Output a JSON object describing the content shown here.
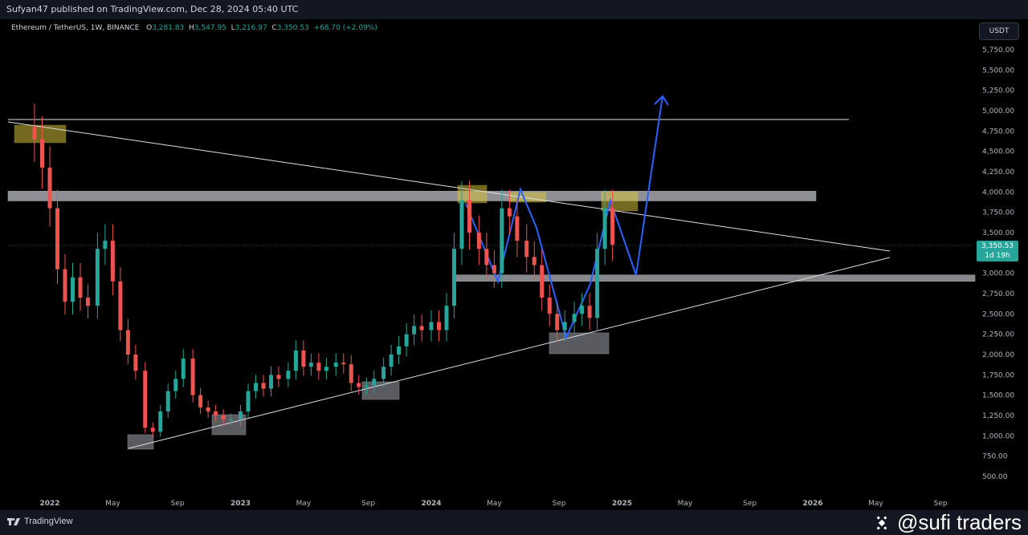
{
  "topbar": {
    "text": "Sufyan47 published on TradingView.com, Dec 28, 2024 05:40 UTC"
  },
  "legend": {
    "symbol": "Ethereum / TetherUS, 1W, BINANCE",
    "o_label": "O",
    "o": "3,281.83",
    "h_label": "H",
    "h": "3,547.95",
    "l_label": "L",
    "l": "3,216.97",
    "c_label": "C",
    "c": "3,350.53",
    "chg": "+68.70 (+2.09%)"
  },
  "currency_button": "USDT",
  "price_tag": {
    "price": "3,350.53",
    "countdown": "1d 19h"
  },
  "footer": {
    "brand": "TradingView",
    "watermark": "@sufi traders"
  },
  "colors": {
    "up": "#26a69a",
    "down": "#ef5350",
    "accent": "#2962ff",
    "zone_gray": "#9598a1",
    "zone_yellow": "#b8a62a"
  },
  "chart_data": {
    "type": "candlestick",
    "title": "Ethereum / TetherUS, 1W, BINANCE",
    "y_ticks": [
      "500.00",
      "750.00",
      "1,000.00",
      "1,250.00",
      "1,500.00",
      "1,750.00",
      "2,000.00",
      "2,250.00",
      "2,500.00",
      "2,750.00",
      "3,000.00",
      "3,250.00",
      "3,500.00",
      "3,750.00",
      "4,000.00",
      "4,250.00",
      "4,500.00",
      "4,750.00",
      "5,000.00",
      "5,250.00",
      "5,500.00",
      "5,750.00"
    ],
    "x_ticks": [
      "2022",
      "May",
      "Sep",
      "2023",
      "May",
      "Sep",
      "2024",
      "May",
      "Sep",
      "2025",
      "May",
      "Sep",
      "2026",
      "May",
      "Sep"
    ],
    "ylim": [
      400,
      5950
    ],
    "series": [
      {
        "name": "ETHUSDT",
        "t": [
          2021.92,
          2021.96,
          2022.0,
          2022.04,
          2022.08,
          2022.12,
          2022.16,
          2022.2,
          2022.25,
          2022.29,
          2022.33,
          2022.37,
          2022.41,
          2022.45,
          2022.5,
          2022.54,
          2022.58,
          2022.62,
          2022.66,
          2022.7,
          2022.75,
          2022.79,
          2022.83,
          2022.87,
          2022.91,
          2022.95,
          2023.0,
          2023.04,
          2023.08,
          2023.12,
          2023.16,
          2023.2,
          2023.25,
          2023.29,
          2023.33,
          2023.37,
          2023.41,
          2023.45,
          2023.5,
          2023.54,
          2023.58,
          2023.62,
          2023.66,
          2023.7,
          2023.75,
          2023.79,
          2023.83,
          2023.87,
          2023.91,
          2023.95,
          2024.0,
          2024.04,
          2024.08,
          2024.12,
          2024.16,
          2024.2,
          2024.25,
          2024.29,
          2024.33,
          2024.37,
          2024.41,
          2024.45,
          2024.5,
          2024.54,
          2024.58,
          2024.62,
          2024.66,
          2024.7,
          2024.75,
          2024.79,
          2024.83,
          2024.87,
          2024.91,
          2024.95
        ],
        "close": [
          4650,
          4300,
          3800,
          3050,
          2650,
          2950,
          2700,
          2600,
          3300,
          3400,
          2900,
          2300,
          2000,
          1800,
          1100,
          1050,
          1300,
          1550,
          1700,
          1950,
          1500,
          1350,
          1300,
          1250,
          1200,
          1200,
          1300,
          1550,
          1650,
          1580,
          1750,
          1700,
          1800,
          2050,
          1850,
          1900,
          1800,
          1850,
          1900,
          1880,
          1650,
          1600,
          1620,
          1700,
          1850,
          2000,
          2100,
          2250,
          2350,
          2300,
          2400,
          2300,
          2600,
          3300,
          3900,
          3500,
          3300,
          3100,
          3000,
          3800,
          3700,
          3400,
          3200,
          3100,
          2700,
          2500,
          2300,
          2400,
          2500,
          2600,
          2450,
          3300,
          3800,
          3350.53
        ]
      }
    ],
    "annotations": {
      "resistance_zone": [
        3890,
        4010
      ],
      "support_zone": [
        2900,
        2980
      ],
      "horizontal_line": 4880,
      "descending_trendline": {
        "from": [
          "2021.9",
          4880
        ],
        "to": [
          "2026.3",
          3270
        ]
      },
      "ascending_trendline": {
        "from": [
          "2022.45",
          850
        ],
        "to": [
          "2026.3",
          3170
        ]
      }
    }
  }
}
